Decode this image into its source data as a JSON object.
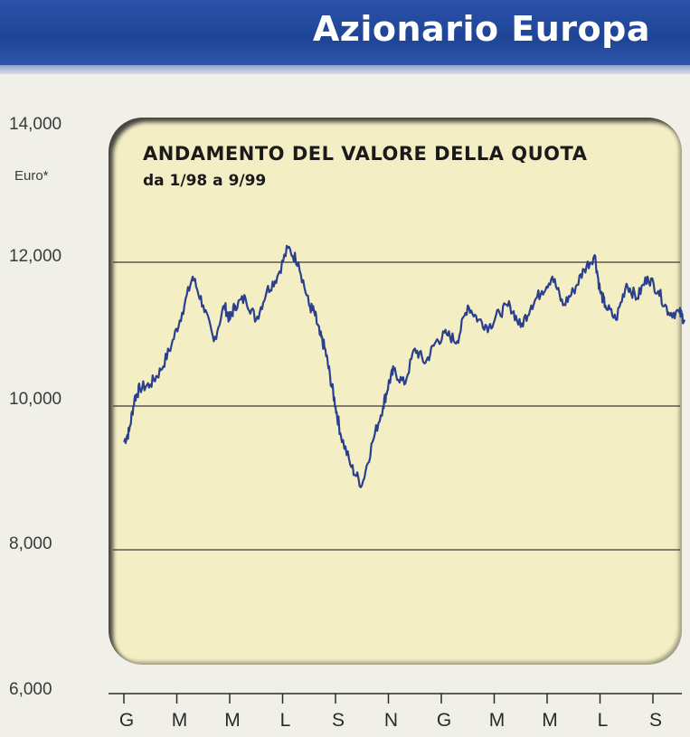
{
  "header": {
    "title": "Azionario Europa"
  },
  "chart_data": {
    "type": "line",
    "title": "ANDAMENTO DEL VALORE DELLA QUOTA",
    "subtitle": "da 1/98 a 9/99",
    "ylabel": "Euro*",
    "ylim": [
      6000,
      14000
    ],
    "yticks": [
      6000,
      8000,
      10000,
      12000,
      14000
    ],
    "ytick_labels": [
      "6,000",
      "8,000",
      "10,000",
      "12,000",
      "14,000"
    ],
    "xticks": [
      "G",
      "M",
      "M",
      "L",
      "S",
      "N",
      "G",
      "M",
      "M",
      "L",
      "S"
    ],
    "xlim": [
      0,
      10.6
    ],
    "grid": "horizontal",
    "series": [
      {
        "color": "#2b3f8f",
        "x": [
          0.0,
          0.1,
          0.2,
          0.3,
          0.5,
          0.7,
          0.9,
          1.1,
          1.3,
          1.5,
          1.7,
          1.9,
          2.0,
          2.1,
          2.3,
          2.5,
          2.7,
          2.9,
          3.1,
          3.3,
          3.5,
          3.6,
          3.7,
          3.8,
          3.9,
          4.0,
          4.1,
          4.3,
          4.5,
          4.7,
          4.9,
          5.0,
          5.1,
          5.3,
          5.5,
          5.7,
          5.9,
          6.1,
          6.3,
          6.5,
          6.7,
          6.9,
          7.1,
          7.3,
          7.5,
          7.7,
          7.9,
          8.1,
          8.3,
          8.5,
          8.7,
          8.9,
          9.0,
          9.1,
          9.3,
          9.5,
          9.7,
          9.9,
          10.1,
          10.3,
          10.5,
          10.6
        ],
        "values": [
          9500,
          9650,
          10100,
          10250,
          10300,
          10500,
          10850,
          11300,
          11800,
          11400,
          10900,
          11400,
          11200,
          11400,
          11500,
          11200,
          11600,
          11800,
          12200,
          12000,
          11400,
          11300,
          11000,
          10800,
          10400,
          10000,
          9600,
          9150,
          8900,
          9500,
          10000,
          10300,
          10500,
          10300,
          10800,
          10600,
          10900,
          11000,
          10900,
          11400,
          11200,
          11100,
          11300,
          11400,
          11100,
          11400,
          11600,
          11800,
          11400,
          11600,
          11900,
          12100,
          11600,
          11400,
          11200,
          11700,
          11500,
          11800,
          11600,
          11300,
          11300,
          11200
        ]
      }
    ]
  }
}
